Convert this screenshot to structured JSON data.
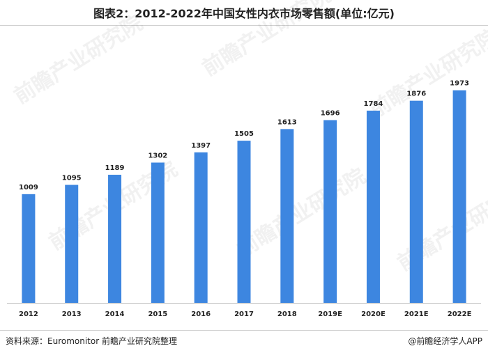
{
  "title": "图表2：2012-2022年中国女性内衣市场零售额(单位:亿元)",
  "footer": {
    "source": "资料来源：Euromonitor 前瞻产业研究院整理",
    "brand": "@前瞻经济学人APP"
  },
  "watermark": "前瞻产业研究院",
  "colors": {
    "bar": "#3d86e0",
    "axis": "#bfbfbf",
    "label": "#222222"
  },
  "chart_data": {
    "type": "bar",
    "categories": [
      "2012",
      "2013",
      "2014",
      "2015",
      "2016",
      "2017",
      "2018",
      "2019E",
      "2020E",
      "2021E",
      "2022E"
    ],
    "values": [
      1009,
      1095,
      1189,
      1302,
      1397,
      1505,
      1613,
      1696,
      1784,
      1876,
      1973
    ],
    "title": "图表2：2012-2022年中国女性内衣市场零售额(单位:亿元)",
    "xlabel": "",
    "ylabel": "",
    "ylim": [
      0,
      2100
    ],
    "grid": false,
    "legend": "none",
    "data_labels": true
  }
}
